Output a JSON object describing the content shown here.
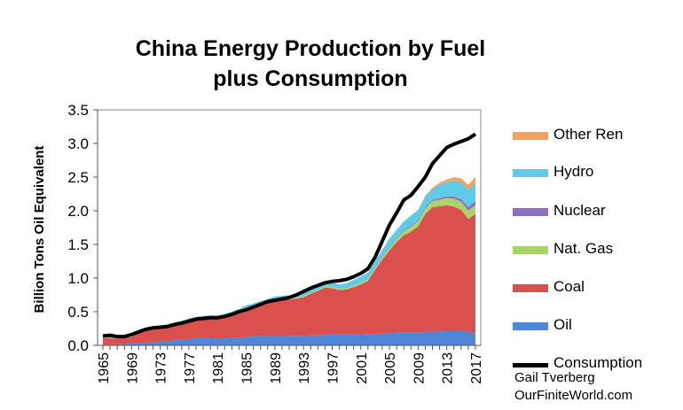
{
  "chart_data": {
    "type": "area",
    "title": "China Energy Production by Fuel plus Consumption",
    "title_lines": [
      "China Energy Production by Fuel",
      "plus Consumption"
    ],
    "xlabel": "",
    "ylabel": "Billion Tons Oil Equivalent",
    "ylim": [
      0,
      3.5
    ],
    "yticks": [
      "0.0",
      "0.5",
      "1.0",
      "1.5",
      "2.0",
      "2.5",
      "3.0",
      "3.5"
    ],
    "xticks": [
      "1965",
      "1969",
      "1973",
      "1977",
      "1981",
      "1985",
      "1989",
      "1993",
      "1997",
      "2001",
      "2005",
      "2009",
      "2013",
      "2017"
    ],
    "grid": false,
    "legend_position": "right",
    "x": [
      1965,
      1966,
      1967,
      1968,
      1969,
      1970,
      1971,
      1972,
      1973,
      1974,
      1975,
      1976,
      1977,
      1978,
      1979,
      1980,
      1981,
      1982,
      1983,
      1984,
      1985,
      1986,
      1987,
      1988,
      1989,
      1990,
      1991,
      1992,
      1993,
      1994,
      1995,
      1996,
      1997,
      1998,
      1999,
      2000,
      2001,
      2002,
      2003,
      2004,
      2005,
      2006,
      2007,
      2008,
      2009,
      2010,
      2011,
      2012,
      2013,
      2014,
      2015,
      2016,
      2017
    ],
    "series": [
      {
        "name": "Oil",
        "kind": "stacked-area",
        "color": "#4f86d6",
        "values": [
          0.01,
          0.015,
          0.015,
          0.02,
          0.025,
          0.03,
          0.04,
          0.045,
          0.055,
          0.065,
          0.075,
          0.085,
          0.095,
          0.105,
          0.106,
          0.106,
          0.1,
          0.102,
          0.106,
          0.114,
          0.125,
          0.13,
          0.134,
          0.137,
          0.138,
          0.138,
          0.14,
          0.142,
          0.145,
          0.146,
          0.149,
          0.157,
          0.16,
          0.161,
          0.16,
          0.163,
          0.164,
          0.167,
          0.17,
          0.175,
          0.181,
          0.185,
          0.186,
          0.19,
          0.189,
          0.203,
          0.203,
          0.207,
          0.21,
          0.211,
          0.214,
          0.2,
          0.192
        ]
      },
      {
        "name": "Coal",
        "kind": "stacked-area",
        "color": "#d9504f",
        "values": [
          0.1,
          0.09,
          0.085,
          0.09,
          0.1,
          0.16,
          0.19,
          0.2,
          0.21,
          0.22,
          0.235,
          0.25,
          0.275,
          0.29,
          0.3,
          0.31,
          0.31,
          0.335,
          0.355,
          0.39,
          0.42,
          0.44,
          0.47,
          0.5,
          0.525,
          0.535,
          0.54,
          0.555,
          0.57,
          0.62,
          0.66,
          0.7,
          0.69,
          0.66,
          0.67,
          0.7,
          0.74,
          0.79,
          0.95,
          1.1,
          1.23,
          1.35,
          1.45,
          1.5,
          1.58,
          1.75,
          1.85,
          1.86,
          1.87,
          1.85,
          1.8,
          1.68,
          1.76
        ]
      },
      {
        "name": "Nat. Gas",
        "kind": "stacked-area",
        "color": "#a9d36b",
        "values": [
          0.002,
          0.002,
          0.002,
          0.002,
          0.003,
          0.003,
          0.004,
          0.004,
          0.005,
          0.006,
          0.007,
          0.008,
          0.009,
          0.011,
          0.012,
          0.012,
          0.011,
          0.011,
          0.011,
          0.011,
          0.012,
          0.012,
          0.012,
          0.012,
          0.013,
          0.014,
          0.014,
          0.014,
          0.015,
          0.016,
          0.016,
          0.018,
          0.02,
          0.02,
          0.023,
          0.025,
          0.027,
          0.029,
          0.031,
          0.037,
          0.044,
          0.052,
          0.062,
          0.072,
          0.077,
          0.085,
          0.092,
          0.097,
          0.11,
          0.118,
          0.122,
          0.124,
          0.134
        ]
      },
      {
        "name": "Nuclear",
        "kind": "stacked-area",
        "color": "#8a6fc4",
        "values": [
          0,
          0,
          0,
          0,
          0,
          0,
          0,
          0,
          0,
          0,
          0,
          0,
          0,
          0,
          0,
          0,
          0,
          0,
          0,
          0,
          0,
          0,
          0,
          0,
          0,
          0,
          0,
          0,
          0,
          0.003,
          0.003,
          0.003,
          0.003,
          0.003,
          0.003,
          0.004,
          0.004,
          0.006,
          0.01,
          0.011,
          0.012,
          0.012,
          0.014,
          0.015,
          0.016,
          0.017,
          0.02,
          0.022,
          0.025,
          0.03,
          0.038,
          0.048,
          0.056
        ]
      },
      {
        "name": "Hydro",
        "kind": "stacked-area",
        "color": "#5ecbe8",
        "values": [
          0.02,
          0.02,
          0.02,
          0.02,
          0.02,
          0.02,
          0.02,
          0.02,
          0.02,
          0.02,
          0.02,
          0.02,
          0.02,
          0.02,
          0.02,
          0.02,
          0.02,
          0.02,
          0.03,
          0.03,
          0.04,
          0.04,
          0.04,
          0.04,
          0.05,
          0.05,
          0.05,
          0.05,
          0.06,
          0.06,
          0.06,
          0.06,
          0.06,
          0.06,
          0.07,
          0.08,
          0.09,
          0.09,
          0.09,
          0.1,
          0.12,
          0.12,
          0.13,
          0.15,
          0.15,
          0.16,
          0.16,
          0.2,
          0.21,
          0.24,
          0.25,
          0.26,
          0.27
        ]
      },
      {
        "name": "Other Ren",
        "kind": "stacked-area",
        "color": "#f5a25d",
        "values": [
          0,
          0,
          0,
          0,
          0,
          0,
          0,
          0,
          0,
          0,
          0,
          0,
          0,
          0,
          0,
          0,
          0,
          0,
          0,
          0,
          0,
          0,
          0,
          0,
          0,
          0,
          0,
          0,
          0,
          0,
          0,
          0,
          0,
          0,
          0,
          0,
          0,
          0,
          0,
          0,
          0,
          0,
          0,
          0,
          0.005,
          0.01,
          0.018,
          0.03,
          0.04,
          0.05,
          0.06,
          0.075,
          0.09
        ]
      },
      {
        "name": "Consumption",
        "kind": "line",
        "color": "#000000",
        "values": [
          0.14,
          0.15,
          0.13,
          0.13,
          0.16,
          0.2,
          0.24,
          0.26,
          0.27,
          0.28,
          0.31,
          0.33,
          0.36,
          0.39,
          0.4,
          0.41,
          0.41,
          0.43,
          0.46,
          0.5,
          0.53,
          0.57,
          0.61,
          0.65,
          0.67,
          0.69,
          0.71,
          0.75,
          0.8,
          0.85,
          0.89,
          0.93,
          0.95,
          0.96,
          0.98,
          1.02,
          1.07,
          1.14,
          1.31,
          1.55,
          1.79,
          1.97,
          2.16,
          2.23,
          2.36,
          2.5,
          2.7,
          2.82,
          2.94,
          2.99,
          3.03,
          3.07,
          3.14
        ]
      }
    ]
  },
  "legend": {
    "items": [
      {
        "label": "Other Ren",
        "color": "#f5a25d"
      },
      {
        "label": "Hydro",
        "color": "#5ecbe8"
      },
      {
        "label": "Nuclear",
        "color": "#8a6fc4"
      },
      {
        "label": "Nat. Gas",
        "color": "#a9d36b"
      },
      {
        "label": "Coal",
        "color": "#d9504f"
      },
      {
        "label": "Oil",
        "color": "#4f86d6"
      }
    ],
    "consumption_label": "Consumption"
  },
  "credit": {
    "author": "Gail Tverberg",
    "site": "OurFiniteWorld.com"
  }
}
